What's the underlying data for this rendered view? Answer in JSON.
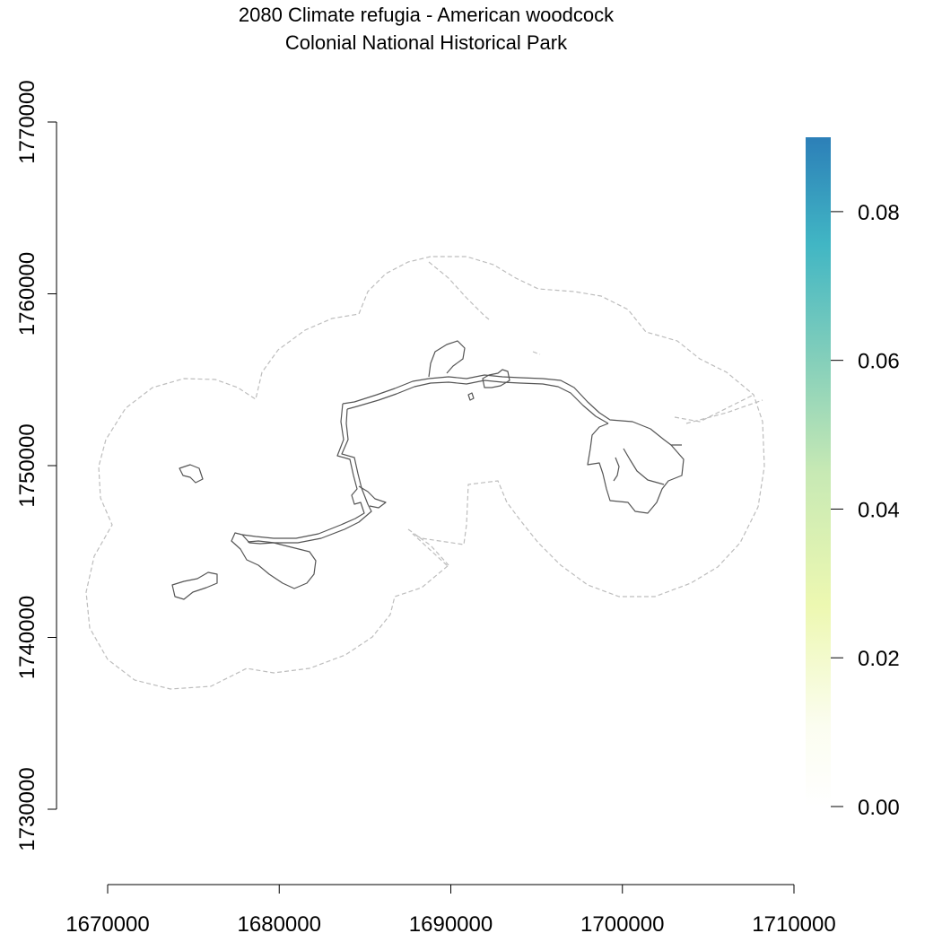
{
  "title": {
    "line1": "2080 Climate refugia - American woodcock",
    "line2": "Colonial National Historical Park"
  },
  "map": {
    "x_axis": {
      "range": [
        1670000,
        1710000
      ],
      "ticks": [
        {
          "value": 1670000,
          "label": "1670000"
        },
        {
          "value": 1680000,
          "label": "1680000"
        },
        {
          "value": 1690000,
          "label": "1690000"
        },
        {
          "value": 1700000,
          "label": "1700000"
        },
        {
          "value": 1710000,
          "label": "1710000"
        }
      ]
    },
    "y_axis": {
      "range": [
        1730000,
        1770000
      ],
      "ticks": [
        {
          "value": 1730000,
          "label": "1730000"
        },
        {
          "value": 1740000,
          "label": "1740000"
        },
        {
          "value": 1750000,
          "label": "1750000"
        },
        {
          "value": 1760000,
          "label": "1760000"
        },
        {
          "value": 1770000,
          "label": "1770000"
        }
      ]
    },
    "layers": [
      "park-boundary",
      "buffer-boundary"
    ],
    "colors": {
      "park_boundary": "#555555",
      "buffer_boundary": "#bdbdbd"
    }
  },
  "legend": {
    "type": "continuous",
    "range": [
      0,
      0.09
    ],
    "ticks": [
      {
        "value": 0.0,
        "label": "0.00"
      },
      {
        "value": 0.02,
        "label": "0.02"
      },
      {
        "value": 0.04,
        "label": "0.04"
      },
      {
        "value": 0.06,
        "label": "0.06"
      },
      {
        "value": 0.08,
        "label": "0.08"
      }
    ],
    "colors": [
      "#ffffff",
      "#f7fcdf",
      "#edf8b1",
      "#c7e9b4",
      "#7fcdbb",
      "#41b6c4",
      "#2c7fb8"
    ]
  }
}
